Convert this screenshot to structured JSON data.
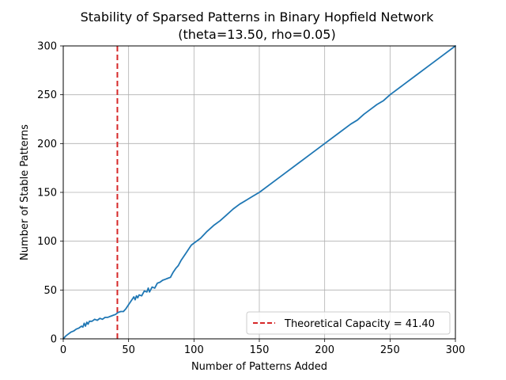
{
  "chart_data": {
    "type": "line",
    "title": "Stability of Sparsed Patterns in Binary Hopfield Network",
    "subtitle": "(theta=13.50, rho=0.05)",
    "xlabel": "Number of Patterns Added",
    "ylabel": "Number of Stable Patterns",
    "xlim": [
      0,
      300
    ],
    "ylim": [
      0,
      300
    ],
    "xticks": [
      0,
      50,
      100,
      150,
      200,
      250,
      300
    ],
    "yticks": [
      0,
      50,
      100,
      150,
      200,
      250,
      300
    ],
    "grid": true,
    "legend_position": "bottom-right",
    "series": [
      {
        "name": "",
        "color": "#1f77b4",
        "x": [
          0,
          2,
          4,
          6,
          8,
          10,
          12,
          14,
          15,
          16,
          17,
          18,
          19,
          20,
          22,
          24,
          26,
          28,
          30,
          32,
          34,
          36,
          38,
          40,
          42,
          44,
          46,
          48,
          50,
          52,
          54,
          55,
          56,
          57,
          58,
          60,
          62,
          64,
          65,
          66,
          68,
          70,
          72,
          74,
          76,
          78,
          80,
          82,
          84,
          86,
          88,
          90,
          92,
          94,
          96,
          98,
          100,
          105,
          110,
          115,
          120,
          125,
          130,
          135,
          140,
          145,
          150,
          160,
          170,
          180,
          190,
          200,
          210,
          220,
          225,
          230,
          235,
          240,
          245,
          250,
          260,
          270,
          280,
          290,
          300
        ],
        "y": [
          0,
          3,
          5,
          7,
          8,
          10,
          11,
          13,
          12,
          16,
          13,
          17,
          15,
          18,
          18,
          20,
          19,
          21,
          20,
          22,
          22,
          23,
          24,
          25,
          27,
          28,
          28,
          31,
          35,
          39,
          43,
          40,
          44,
          42,
          45,
          44,
          49,
          48,
          52,
          48,
          53,
          52,
          57,
          58,
          60,
          61,
          62,
          63,
          68,
          72,
          75,
          80,
          84,
          88,
          92,
          96,
          98,
          103,
          110,
          116,
          121,
          127,
          133,
          138,
          142,
          146,
          150,
          160,
          170,
          180,
          190,
          200,
          210,
          220,
          224,
          230,
          235,
          240,
          244,
          250,
          260,
          270,
          280,
          290,
          300
        ]
      }
    ],
    "reference_lines": [
      {
        "axis": "x",
        "value": 41.4,
        "color": "#d62728",
        "style": "dashed",
        "label": "Theoretical Capacity = 41.40"
      }
    ]
  }
}
